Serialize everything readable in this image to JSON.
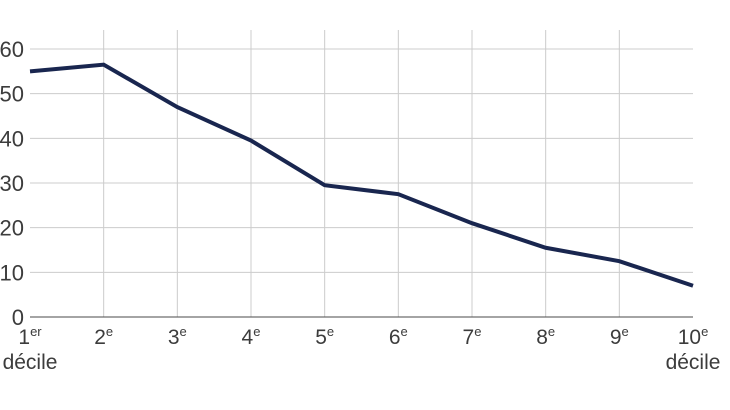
{
  "chart_data": {
    "type": "line",
    "title": "",
    "xlabel": "décile",
    "ylabel": "",
    "categories": [
      "1er décile",
      "2e",
      "3e",
      "4e",
      "5e",
      "6e",
      "7e",
      "8e",
      "9e",
      "10e décile"
    ],
    "values": [
      55,
      56.5,
      47,
      39.5,
      29.5,
      27.5,
      21,
      15.5,
      12.5,
      7
    ],
    "ylim": [
      0,
      60
    ],
    "y_ticks": [
      0,
      10,
      20,
      30,
      40,
      50,
      60
    ],
    "grid": "on",
    "legend": "none",
    "x_ticks": [
      {
        "num": "1",
        "sup": "er",
        "line2": "décile"
      },
      {
        "num": "2",
        "sup": "e",
        "line2": ""
      },
      {
        "num": "3",
        "sup": "e",
        "line2": ""
      },
      {
        "num": "4",
        "sup": "e",
        "line2": ""
      },
      {
        "num": "5",
        "sup": "e",
        "line2": ""
      },
      {
        "num": "6",
        "sup": "e",
        "line2": ""
      },
      {
        "num": "7",
        "sup": "e",
        "line2": ""
      },
      {
        "num": "8",
        "sup": "e",
        "line2": ""
      },
      {
        "num": "9",
        "sup": "e",
        "line2": ""
      },
      {
        "num": "10",
        "sup": "e",
        "line2": "décile"
      }
    ]
  },
  "colors": {
    "line": "#19264f",
    "grid": "#cccccc",
    "axis": "#4a4a4a",
    "text": "#3c3c3c",
    "background": "#ffffff"
  }
}
